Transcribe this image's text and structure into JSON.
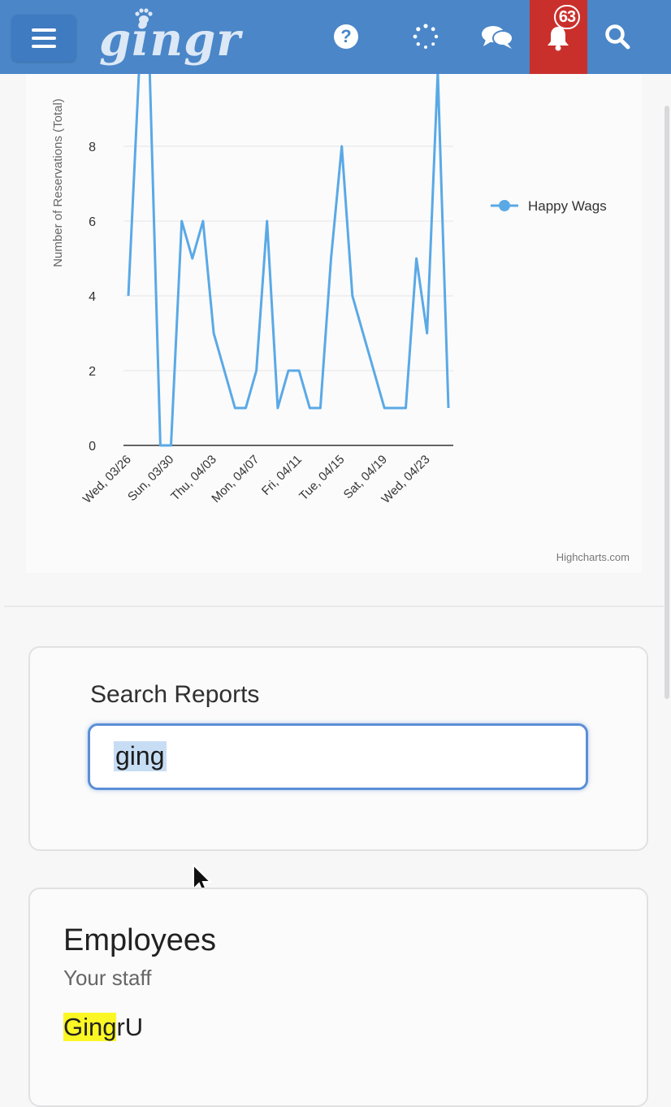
{
  "header": {
    "logo_text": "gingr",
    "icons": [
      "menu-icon",
      "help-icon",
      "loading-spinner-icon",
      "chat-icon",
      "bell-icon",
      "search-icon"
    ],
    "notification_count": "63",
    "colors": {
      "bar": "#4a86c8",
      "alert": "#c9302c"
    }
  },
  "chart_data": {
    "type": "line",
    "ylabel": "Number of Reservations (Total)",
    "ylim": [
      0,
      10
    ],
    "yticks": [
      "0",
      "2",
      "4",
      "6",
      "8"
    ],
    "xticks": [
      "Wed, 03/26",
      "Sun, 03/30",
      "Thu, 04/03",
      "Mon, 04/07",
      "Fri, 04/11",
      "Tue, 04/15",
      "Sat, 04/19",
      "Wed, 04/23"
    ],
    "series": [
      {
        "name": "Happy Wags",
        "color": "#5aa9e6",
        "values": [
          4,
          10,
          10,
          0,
          0,
          6,
          5,
          6,
          3,
          2,
          1,
          1,
          2,
          6,
          1,
          2,
          2,
          1,
          1,
          5,
          8,
          4,
          3,
          2,
          1,
          1,
          1,
          5,
          3,
          10,
          1
        ]
      }
    ],
    "legend": "right",
    "credits": "Highcharts.com"
  },
  "search": {
    "label": "Search Reports",
    "value": "ging"
  },
  "results": {
    "title": "Employees",
    "subtitle": "Your staff",
    "item_highlight": "Ging",
    "item_rest": "rU"
  }
}
